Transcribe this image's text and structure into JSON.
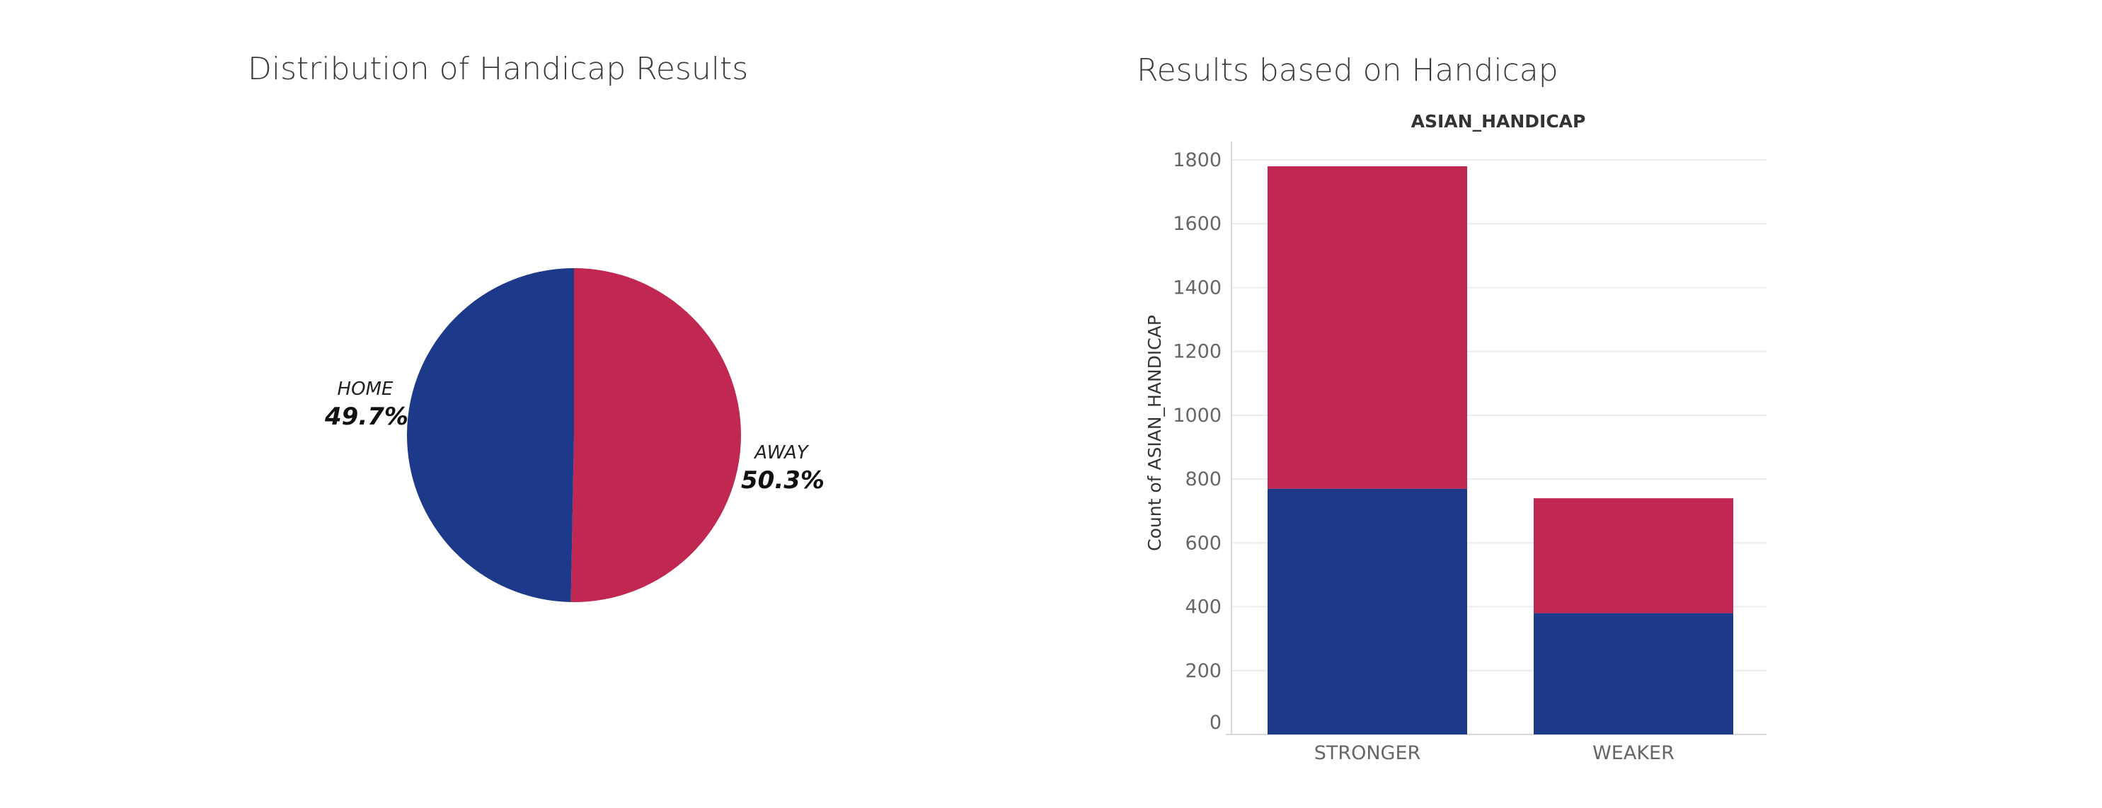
{
  "colors": {
    "home": "#1d3a8a",
    "away": "#c02751",
    "grid": "#ececec",
    "axis": "#d9d9d9"
  },
  "chart_data": [
    {
      "type": "pie",
      "title": "Distribution of Handicap Results",
      "slices": [
        {
          "label": "HOME",
          "percent_label": "49.7%",
          "value": 49.7,
          "color_key": "home"
        },
        {
          "label": "AWAY",
          "percent_label": "50.3%",
          "value": 50.3,
          "color_key": "away"
        }
      ]
    },
    {
      "type": "bar",
      "stacked": true,
      "title": "Results based on Handicap",
      "header": "ASIAN_HANDICAP",
      "ylabel": "Count of ASIAN_HANDICAP",
      "xlabel": "",
      "categories": [
        "STRONGER",
        "WEAKER"
      ],
      "series": [
        {
          "key": "home",
          "values": [
            770,
            380
          ]
        },
        {
          "key": "away",
          "values": [
            1010,
            360
          ]
        }
      ],
      "ylim": [
        0,
        1800
      ],
      "yticks": [
        0,
        200,
        400,
        600,
        800,
        1000,
        1200,
        1400,
        1600,
        1800
      ],
      "grid": true
    }
  ]
}
